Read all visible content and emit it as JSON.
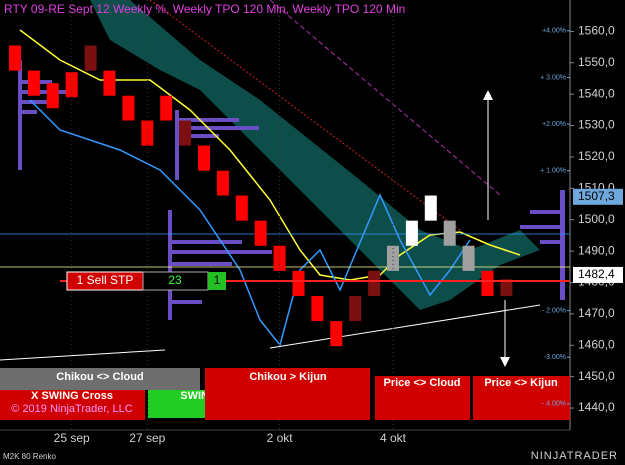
{
  "chart_data": {
    "type": "renko",
    "title": "RTY 09-RE Sept 12 Weekly %, Weekly TPO 120 Min, Weekly TPO 120 Min",
    "instrument": "M2K 80 Renko",
    "ylim": [
      1433,
      1570
    ],
    "yticks": [
      {
        "value": 1440,
        "label": "1440,0"
      },
      {
        "value": 1450,
        "label": "1450,0"
      },
      {
        "value": 1460,
        "label": "1460,0"
      },
      {
        "value": 1470,
        "label": "1470,0"
      },
      {
        "value": 1480,
        "label": "1480,0"
      },
      {
        "value": 1490,
        "label": "1490,0"
      },
      {
        "value": 1500,
        "label": "1500,0"
      },
      {
        "value": 1510,
        "label": "1510,0"
      },
      {
        "value": 1520,
        "label": "1520,0"
      },
      {
        "value": 1530,
        "label": "1530,0"
      },
      {
        "value": 1540,
        "label": "1540,0"
      },
      {
        "value": 1550,
        "label": "1550,0"
      },
      {
        "value": 1560,
        "label": "1560,0"
      }
    ],
    "y2lim": [
      -4.56,
      4.66
    ],
    "y2ticks": [
      {
        "value": 4,
        "label": "+4.00%"
      },
      {
        "value": 3,
        "label": "+ 3.00%"
      },
      {
        "value": 2,
        "label": "+2.00%"
      },
      {
        "value": 1,
        "label": "+ 1.00%"
      },
      {
        "value": -2,
        "label": "- 2.00%"
      },
      {
        "value": -3,
        "label": "-3.00%"
      },
      {
        "value": -4,
        "label": "- 4.00%"
      }
    ],
    "categories": [
      null,
      null,
      null,
      "25 sep",
      null,
      null,
      null,
      "27 sep",
      null,
      null,
      null,
      null,
      null,
      null,
      "2 okt",
      null,
      null,
      null,
      null,
      null,
      "4 okt",
      null,
      null,
      null,
      null,
      null,
      null
    ],
    "open": [
      1555.5,
      1547.5,
      1543.5,
      1547.0,
      1555.5,
      1547.5,
      1539.5,
      1531.6,
      1539.5,
      1531.6,
      1523.6,
      1515.6,
      1507.7,
      1499.7,
      1491.7,
      1483.7,
      1475.7,
      1467.7,
      1475.7,
      1483.7,
      1483.7,
      1491.7,
      1499.7,
      1499.7,
      1491.7,
      1483.7,
      1481.0
    ],
    "close": [
      1547.5,
      1539.5,
      1535.5,
      1539.0,
      1547.5,
      1539.5,
      1531.6,
      1523.6,
      1531.6,
      1523.6,
      1515.6,
      1507.7,
      1499.7,
      1491.7,
      1483.7,
      1475.7,
      1467.7,
      1459.7,
      1467.7,
      1475.7,
      1491.7,
      1499.7,
      1507.7,
      1491.7,
      1483.7,
      1475.7,
      1475.7
    ],
    "colors": [
      "#ff0000",
      "#ff0000",
      "#ff0000",
      "#ff0000",
      "#7a1010",
      "#ff0000",
      "#ff0000",
      "#ff0000",
      "#ff0000",
      "#7a1010",
      "#ff0000",
      "#ff0000",
      "#ff0000",
      "#ff0000",
      "#ff0000",
      "#ff0000",
      "#ff0000",
      "#ff0000",
      "#7a1010",
      "#7a1010",
      "#a0a0a0",
      "#ffffff",
      "#ffffff",
      "#a0a0a0",
      "#a0a0a0",
      "#ff0000",
      "#7a1010"
    ],
    "price_tags": [
      {
        "value": 1507.3,
        "label": "1507,3",
        "color": "#6fa8dc"
      },
      {
        "value": 1482.4,
        "label": "1482,4",
        "color": "#ffffff"
      }
    ],
    "order": {
      "name": "1 Sell STP",
      "count": 23,
      "filled": 1
    },
    "signals": [
      "Chikou <> Cloud",
      "X SWING Cross",
      "SWING Cross",
      "Chikou > Kijun",
      "Price <> Cloud",
      "Price <> Kijun"
    ],
    "copyright": "© 2019 NinjaTrader, LLC",
    "brand": "NINJATRADER"
  }
}
